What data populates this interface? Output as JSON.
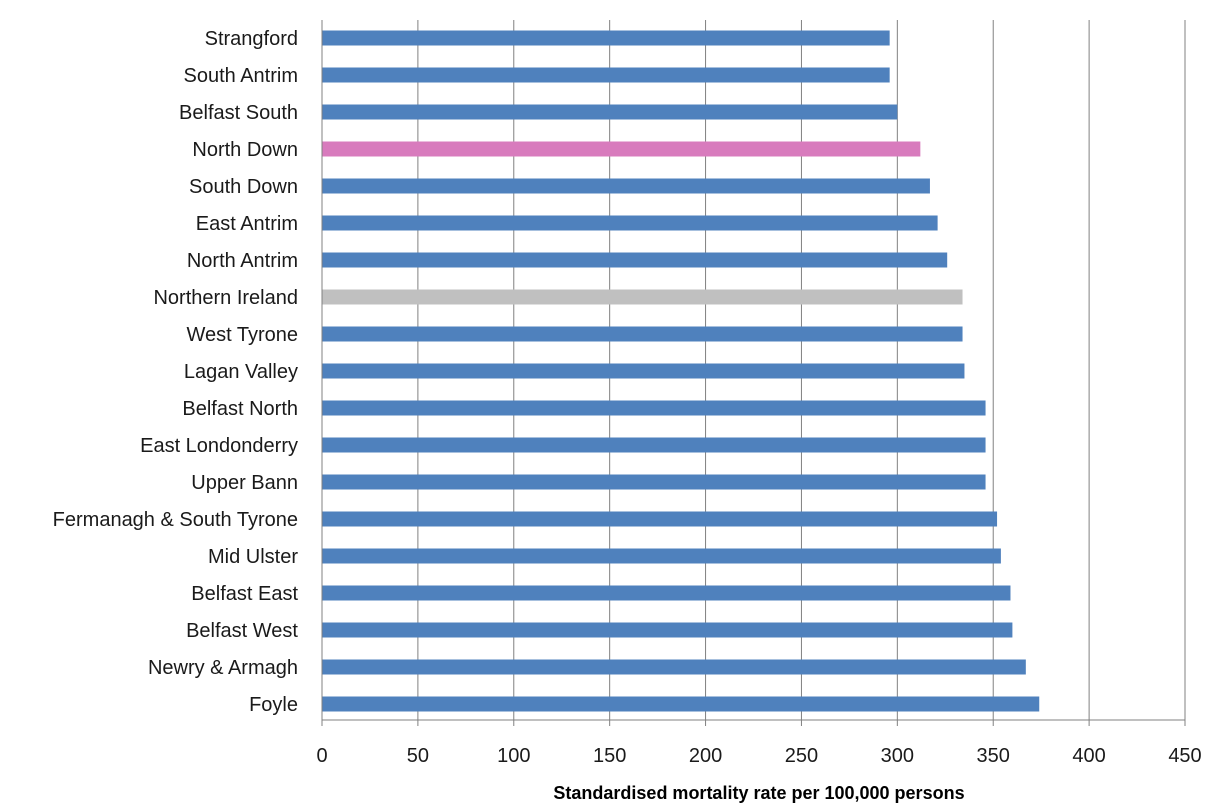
{
  "chart_data": {
    "type": "bar",
    "orientation": "horizontal",
    "title": "",
    "xlabel": "Standardised mortality rate per 100,000 persons",
    "ylabel": "",
    "xlim": [
      0,
      450
    ],
    "x_ticks": [
      0,
      50,
      100,
      150,
      200,
      250,
      300,
      350,
      400,
      450
    ],
    "grid": "vertical",
    "legend": "none",
    "categories": [
      "Strangford",
      "South Antrim",
      "Belfast South",
      "North Down",
      "South Down",
      "East Antrim",
      "North Antrim",
      "Northern Ireland",
      "West Tyrone",
      "Lagan Valley",
      "Belfast North",
      "East Londonderry",
      "Upper Bann",
      "Fermanagh & South Tyrone",
      "Mid Ulster",
      "Belfast East",
      "Belfast West",
      "Newry & Armagh",
      "Foyle"
    ],
    "values": [
      296,
      296,
      300,
      312,
      317,
      321,
      326,
      334,
      334,
      335,
      346,
      346,
      346,
      352,
      354,
      359,
      360,
      367,
      374
    ],
    "colors": {
      "default": "#4f81bd",
      "highlight": "#d87bbd",
      "reference": "#c0c0c0",
      "gridline": "#808080",
      "axis": "#808080"
    },
    "highlight_categories": [
      "North Down"
    ],
    "reference_categories": [
      "Northern Ireland"
    ]
  }
}
